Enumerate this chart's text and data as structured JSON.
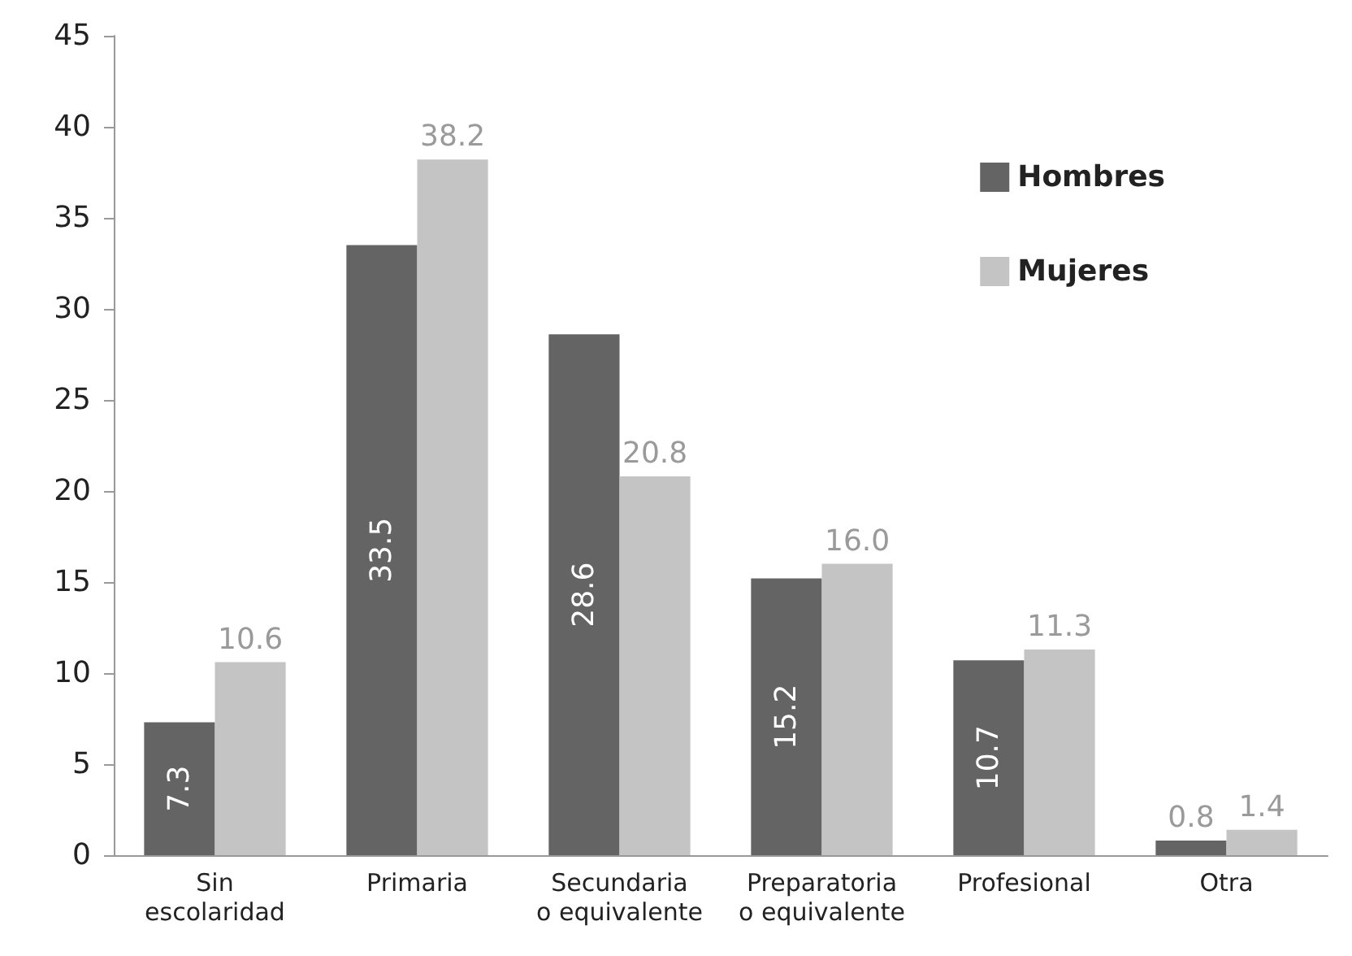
{
  "chart_data": {
    "type": "bar",
    "categories": [
      "Sin\nescolaridad",
      "Primaria",
      "Secundaria\no equivalente",
      "Preparatoria\no equivalente",
      "Profesional",
      "Otra"
    ],
    "series": [
      {
        "name": "Hombres",
        "color": "#646464",
        "values": [
          7.3,
          33.5,
          28.6,
          15.2,
          10.7,
          0.8
        ],
        "value_labels": [
          "7.3",
          "33.5",
          "28.6",
          "15.2",
          "10.7",
          "0.8"
        ]
      },
      {
        "name": "Mujeres",
        "color": "#c4c4c4",
        "values": [
          10.6,
          38.2,
          20.8,
          16.0,
          11.3,
          1.4
        ],
        "value_labels": [
          "10.6",
          "38.2",
          "20.8",
          "16.0",
          "11.3",
          "1.4"
        ]
      }
    ],
    "ylim": [
      0,
      45
    ],
    "yticks": [
      0,
      5,
      10,
      15,
      20,
      25,
      30,
      35,
      40,
      45
    ],
    "grid": false,
    "legend": "top right"
  }
}
